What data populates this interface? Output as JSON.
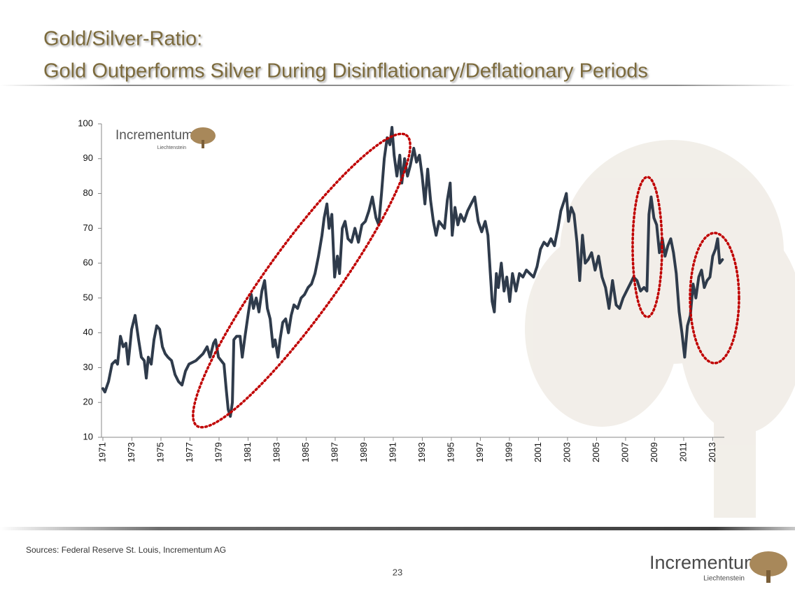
{
  "slide": {
    "title": [
      "Gold/Silver-Ratio:",
      "Gold Outperforms Silver During Disinflationary/Deflationary Periods"
    ],
    "source": "Sources: Federal Reserve St. Louis, Incrementum AG",
    "page_number": "23",
    "logo": {
      "name": "Incrementum",
      "subtitle": "Liechtenstein"
    }
  },
  "chart_data": {
    "type": "line",
    "color": "#2f3b4b",
    "x": [
      1971.0,
      1971.14,
      1971.39,
      1971.63,
      1971.87,
      1972.01,
      1972.21,
      1972.4,
      1972.59,
      1972.74,
      1972.98,
      1973.22,
      1973.46,
      1973.65,
      1973.85,
      1973.99,
      1974.13,
      1974.33,
      1974.52,
      1974.71,
      1974.91,
      1975.1,
      1975.29,
      1975.48,
      1975.73,
      1975.97,
      1976.21,
      1976.45,
      1976.69,
      1976.93,
      1977.41,
      1977.9,
      1978.18,
      1978.38,
      1978.62,
      1978.76,
      1978.96,
      1979.15,
      1979.34,
      1979.49,
      1979.63,
      1979.78,
      1979.92,
      1980.02,
      1980.21,
      1980.45,
      1980.6,
      1980.79,
      1981.03,
      1981.22,
      1981.37,
      1981.56,
      1981.75,
      1981.95,
      1982.14,
      1982.33,
      1982.52,
      1982.72,
      1982.86,
      1983.06,
      1983.2,
      1983.39,
      1983.59,
      1983.78,
      1983.97,
      1984.16,
      1984.41,
      1984.65,
      1984.89,
      1985.13,
      1985.37,
      1985.61,
      1985.85,
      1986.09,
      1986.24,
      1986.43,
      1986.58,
      1986.77,
      1986.96,
      1987.15,
      1987.3,
      1987.49,
      1987.68,
      1987.88,
      1988.12,
      1988.36,
      1988.6,
      1988.84,
      1989.08,
      1989.32,
      1989.56,
      1989.81,
      1990.0,
      1990.19,
      1990.38,
      1990.58,
      1990.77,
      1990.91,
      1991.06,
      1991.25,
      1991.45,
      1991.59,
      1991.78,
      1991.98,
      1992.17,
      1992.41,
      1992.6,
      1992.8,
      1992.99,
      1993.18,
      1993.37,
      1993.57,
      1993.76,
      1993.95,
      1994.15,
      1994.34,
      1994.53,
      1994.72,
      1994.92,
      1995.06,
      1995.25,
      1995.45,
      1995.64,
      1995.88,
      1996.12,
      1996.36,
      1996.61,
      1996.85,
      1997.09,
      1997.33,
      1997.52,
      1997.67,
      1997.81,
      1997.96,
      1998.1,
      1998.24,
      1998.44,
      1998.63,
      1998.82,
      1999.02,
      1999.21,
      1999.45,
      1999.69,
      1999.93,
      2000.17,
      2000.41,
      2000.66,
      2000.9,
      2001.14,
      2001.38,
      2001.62,
      2001.86,
      2002.1,
      2002.34,
      2002.54,
      2002.78,
      2002.92,
      2003.07,
      2003.26,
      2003.45,
      2003.65,
      2003.84,
      2004.03,
      2004.22,
      2004.42,
      2004.66,
      2004.9,
      2005.14,
      2005.38,
      2005.62,
      2005.86,
      2006.1,
      2006.35,
      2006.59,
      2006.83,
      2007.07,
      2007.31,
      2007.55,
      2007.79,
      2008.03,
      2008.27,
      2008.47,
      2008.61,
      2008.76,
      2008.95,
      2009.14,
      2009.33,
      2009.53,
      2009.72,
      2009.91,
      2010.11,
      2010.3,
      2010.49,
      2010.69,
      2010.88,
      2011.07,
      2011.26,
      2011.46,
      2011.65,
      2011.84,
      2012.04,
      2012.23,
      2012.42,
      2012.61,
      2012.81,
      2013.0,
      2013.19,
      2013.34,
      2013.48,
      2013.67
    ],
    "values": [
      24,
      23,
      26,
      31,
      32,
      31,
      39,
      36,
      37,
      31,
      41,
      45,
      38,
      33,
      32,
      27,
      33,
      31,
      38,
      42,
      41,
      36,
      34,
      33,
      32,
      28,
      26,
      25,
      29,
      31,
      32,
      34,
      36,
      33,
      37,
      38,
      33,
      32,
      31,
      24,
      18,
      16,
      20,
      38,
      39,
      39,
      33,
      39,
      46,
      51,
      47,
      50,
      46,
      52,
      55,
      47,
      44,
      36,
      38,
      33,
      38,
      43,
      44,
      40,
      45,
      48,
      47,
      50,
      51,
      53,
      54,
      57,
      62,
      68,
      73,
      77,
      70,
      74,
      56,
      62,
      57,
      70,
      72,
      67,
      66,
      70,
      66,
      71,
      72,
      75,
      79,
      73,
      71,
      80,
      90,
      96,
      94,
      99,
      91,
      85,
      91,
      83,
      90,
      85,
      88,
      93,
      89,
      91,
      85,
      77,
      87,
      78,
      72,
      68,
      72,
      71,
      70,
      78,
      83,
      68,
      76,
      71,
      74,
      72,
      75,
      77,
      79,
      72,
      69,
      72,
      68,
      58,
      49,
      46,
      57,
      53,
      60,
      52,
      56,
      49,
      57,
      52,
      57,
      56,
      58,
      57,
      56,
      59,
      64,
      66,
      65,
      67,
      65,
      70,
      75,
      78,
      80,
      72,
      76,
      74,
      66,
      55,
      68,
      60,
      61,
      63,
      58,
      62,
      56,
      53,
      47,
      55,
      48,
      47,
      50,
      52,
      54,
      56,
      55,
      52,
      53,
      52,
      74,
      79,
      73,
      71,
      63,
      67,
      62,
      65,
      67,
      63,
      57,
      46,
      40,
      33,
      42,
      45,
      54,
      50,
      56,
      58,
      53,
      55,
      56,
      62,
      64,
      67,
      60,
      61
    ],
    "xlim": [
      1971,
      2013.8
    ],
    "xticks": [
      1971,
      1973,
      1975,
      1977,
      1979,
      1981,
      1983,
      1985,
      1987,
      1989,
      1991,
      1993,
      1995,
      1997,
      1999,
      2001,
      2003,
      2005,
      2007,
      2009,
      2011,
      2013
    ],
    "ylim": [
      10,
      100
    ],
    "yticks": [
      10,
      20,
      30,
      40,
      50,
      60,
      70,
      80,
      90,
      100
    ]
  }
}
